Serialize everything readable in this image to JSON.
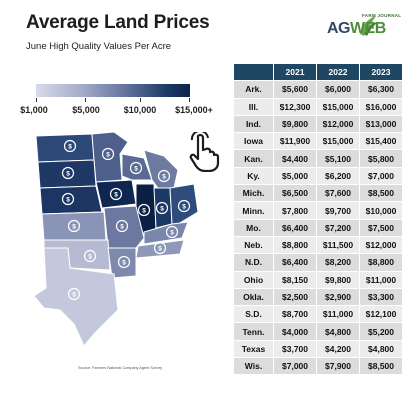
{
  "header": {
    "title": "Average Land Prices",
    "subtitle": "June High Quality Values Per Acre",
    "logo_top": "FARM JOURNAL",
    "logo_ag": "AG",
    "logo_web": "WEB"
  },
  "legend": {
    "labels": [
      "$1,000",
      "$5,000",
      "$10,000",
      "$15,000+"
    ],
    "min": 1000,
    "max": 15000
  },
  "source": "Source: Farmers National Company Agent Survey",
  "colors": {
    "header_bg": "#1f4764",
    "cell_bg": "#dcdcdc",
    "alt_cell_bg": "#ececec",
    "map_light": "#c9cde0",
    "map_dark": "#0e2347"
  },
  "chart_data": {
    "type": "table",
    "title": "Average Land Prices",
    "subtitle": "June High Quality Values Per Acre",
    "columns": [
      "2021",
      "2022",
      "2023"
    ],
    "rows": [
      {
        "state": "Ark.",
        "values": [
          "$5,600",
          "$6,000",
          "$6,300"
        ]
      },
      {
        "state": "Ill.",
        "values": [
          "$12,300",
          "$15,000",
          "$16,000"
        ]
      },
      {
        "state": "Ind.",
        "values": [
          "$9,800",
          "$12,000",
          "$13,000"
        ]
      },
      {
        "state": "Iowa",
        "values": [
          "$11,900",
          "$15,000",
          "$15,400"
        ]
      },
      {
        "state": "Kan.",
        "values": [
          "$4,400",
          "$5,100",
          "$5,800"
        ]
      },
      {
        "state": "Ky.",
        "values": [
          "$5,000",
          "$6,200",
          "$7,000"
        ]
      },
      {
        "state": "Mich.",
        "values": [
          "$6,500",
          "$7,600",
          "$8,500"
        ]
      },
      {
        "state": "Minn.",
        "values": [
          "$7,800",
          "$9,700",
          "$10,000"
        ]
      },
      {
        "state": "Mo.",
        "values": [
          "$6,400",
          "$7,200",
          "$7,500"
        ]
      },
      {
        "state": "Neb.",
        "values": [
          "$8,800",
          "$11,500",
          "$12,000"
        ]
      },
      {
        "state": "N.D.",
        "values": [
          "$6,400",
          "$8,200",
          "$8,800"
        ]
      },
      {
        "state": "Ohio",
        "values": [
          "$8,150",
          "$9,800",
          "$11,000"
        ]
      },
      {
        "state": "Okla.",
        "values": [
          "$2,500",
          "$2,900",
          "$3,300"
        ]
      },
      {
        "state": "S.D.",
        "values": [
          "$8,700",
          "$11,000",
          "$12,100"
        ]
      },
      {
        "state": "Tenn.",
        "values": [
          "$4,000",
          "$4,800",
          "$5,200"
        ]
      },
      {
        "state": "Texas",
        "values": [
          "$3,700",
          "$4,200",
          "$4,800"
        ]
      },
      {
        "state": "Wis.",
        "values": [
          "$7,000",
          "$7,900",
          "$8,500"
        ]
      }
    ]
  }
}
